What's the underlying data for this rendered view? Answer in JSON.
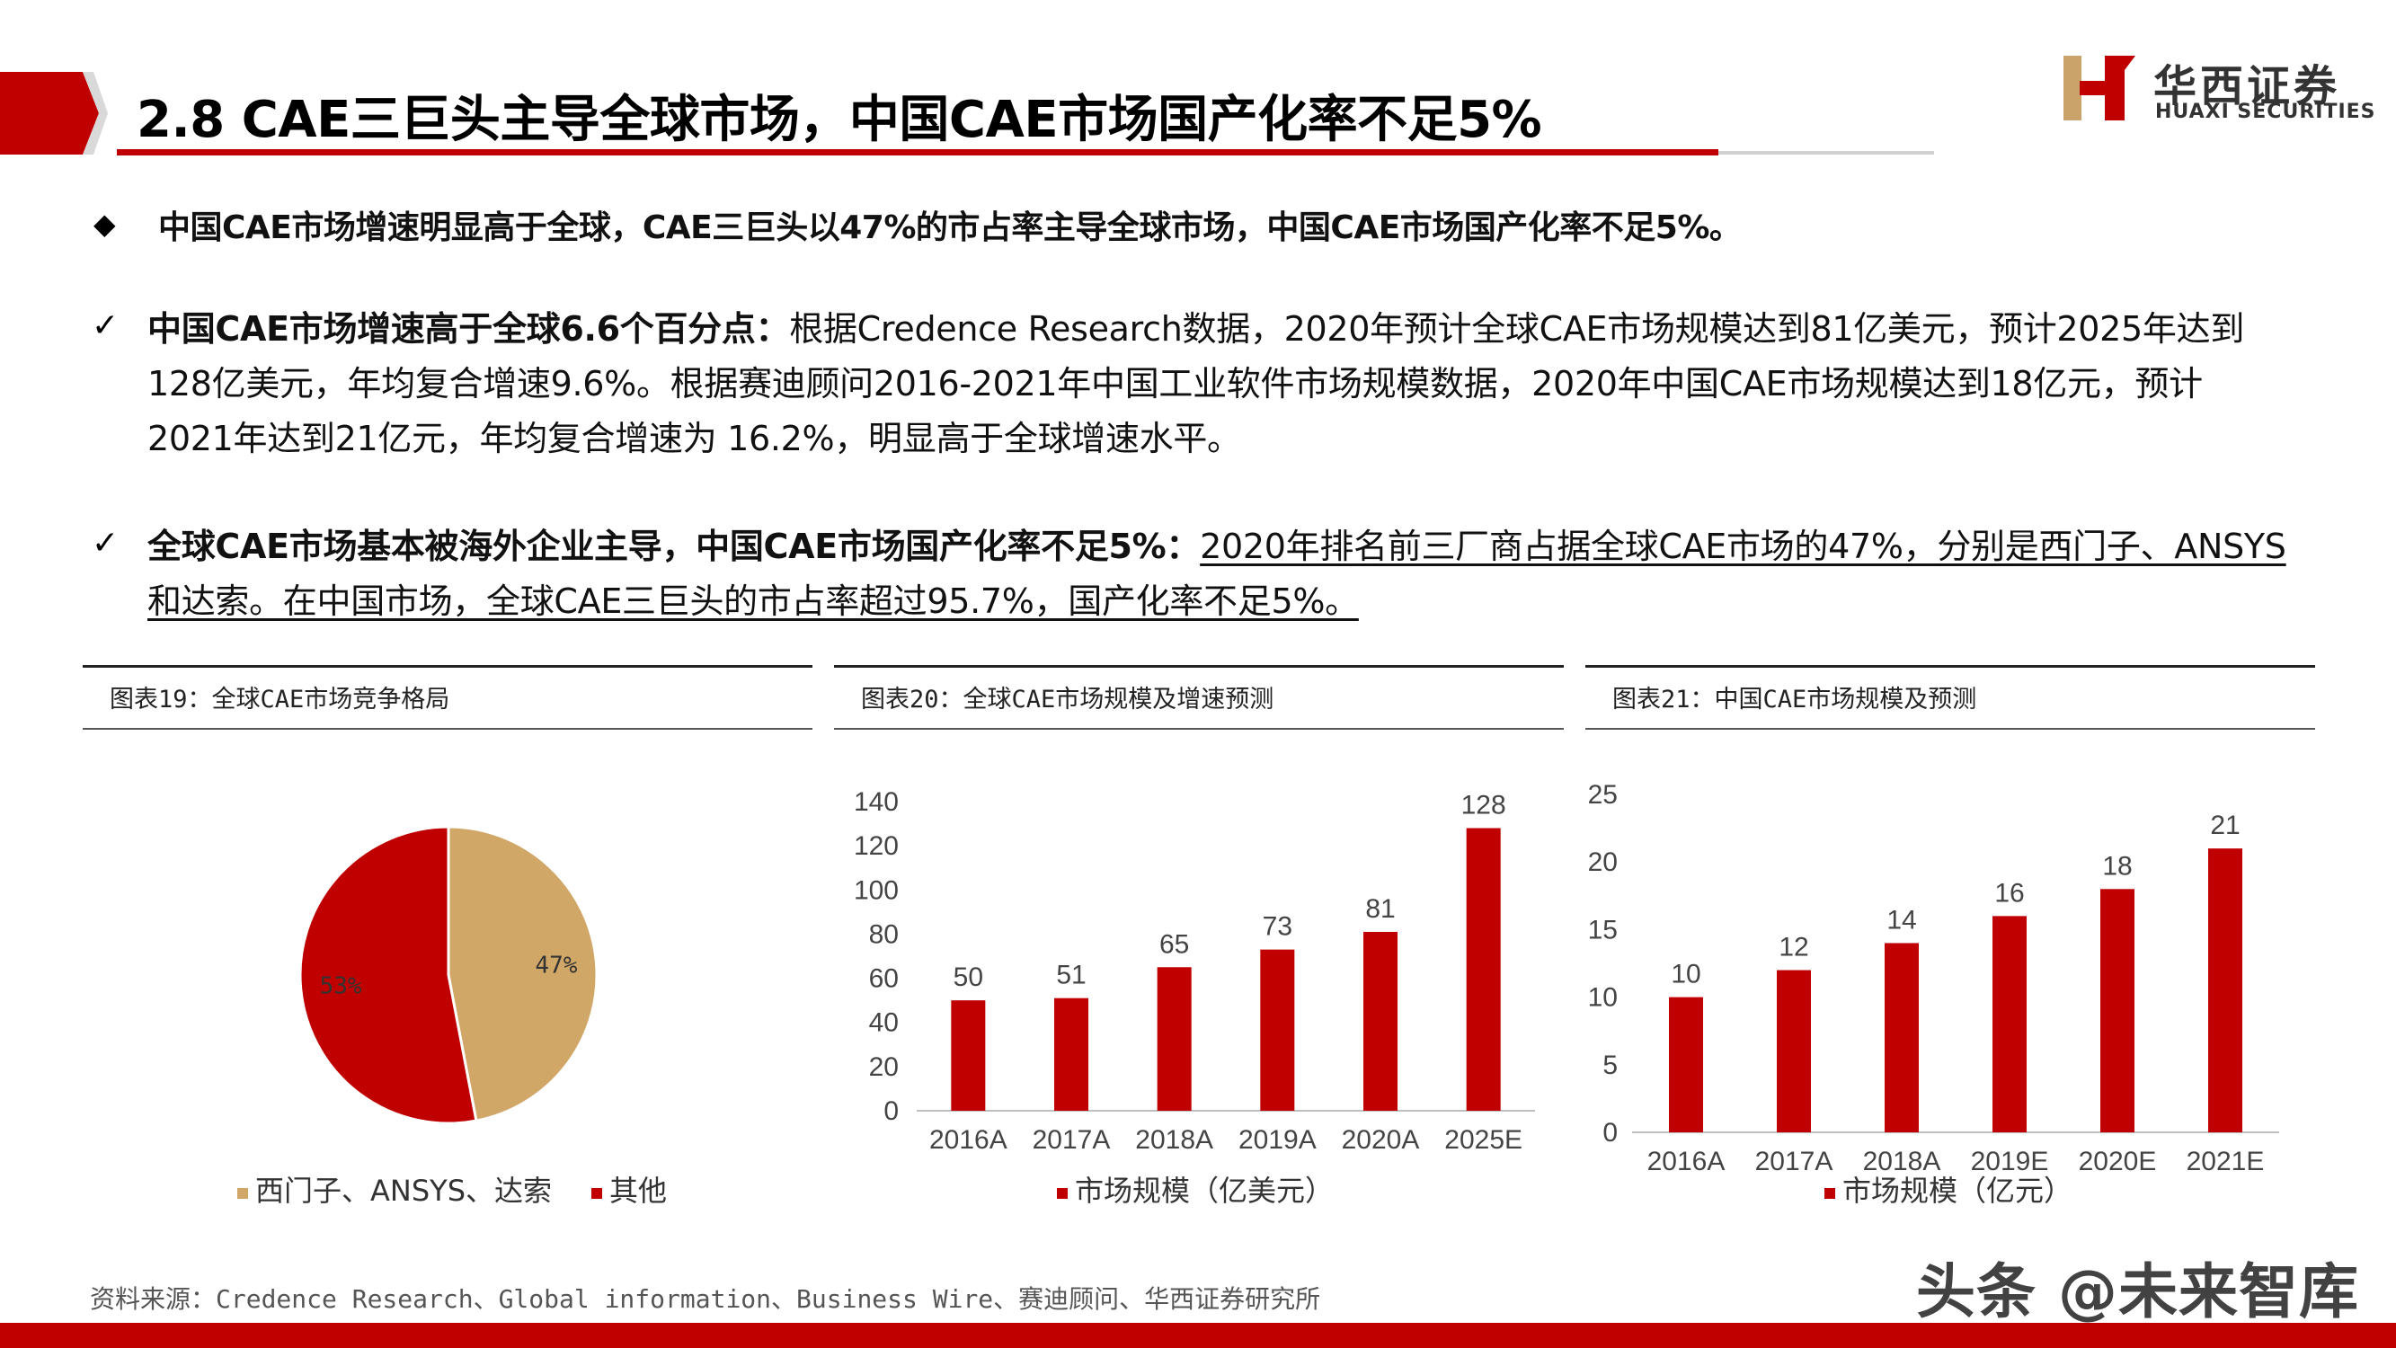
{
  "header": {
    "title": "2.8 CAE三巨头主导全球市场，中国CAE市场国产化率不足5%",
    "logo_cn": "华西证券",
    "logo_en": "HUAXI SECURITIES",
    "brand_color": "#c00000"
  },
  "summary": {
    "icon": "diamond-bullet-icon",
    "text": "中国CAE市场增速明显高于全球，CAE三巨头以47%的市占率主导全球市场，中国CAE市场国产化率不足5%。"
  },
  "points": [
    {
      "icon": "check-icon",
      "heading": "中国CAE市场增速高于全球6.6个百分点：",
      "body": "根据Credence Research数据，2020年预计全球CAE市场规模达到81亿美元，预计2025年达到128亿美元，年均复合增速9.6%。根据赛迪顾问2016-2021年中国工业软件市场规模数据，2020年中国CAE市场规模达到18亿元，预计2021年达到21亿元，年均复合增速为 16.2%，明显高于全球增速水平。"
    },
    {
      "icon": "check-icon",
      "heading": "全球CAE市场基本被海外企业主导，中国CAE市场国产化率不足5%：",
      "body": "2020年排名前三厂商占据全球CAE市场的47%，分别是西门子、ANSYS和达索。在中国市场，全球CAE三巨头的市占率超过95.7%，国产化率不足5%。"
    }
  ],
  "panels": [
    {
      "title": "图表19：全球CAE市场竞争格局"
    },
    {
      "title": "图表20：全球CAE市场规模及增速预测"
    },
    {
      "title": "图表21：中国CAE市场规模及预测"
    }
  ],
  "chart_data": [
    {
      "type": "pie",
      "slices": [
        {
          "name": "西门子、ANSYS、达索",
          "value": 47,
          "label": "47%",
          "color": "#d1a767"
        },
        {
          "name": "其他",
          "value": 53,
          "label": "53%",
          "color": "#c00000"
        }
      ],
      "legend": "bottom"
    },
    {
      "type": "bar",
      "categories": [
        "2016A",
        "2017A",
        "2018A",
        "2019A",
        "2020A",
        "2025E"
      ],
      "series": [
        {
          "name": "市场规模（亿美元）",
          "values": [
            50,
            51,
            65,
            73,
            81,
            128
          ],
          "color": "#c00000"
        }
      ],
      "ylim": [
        0,
        140
      ],
      "yticks": [
        "0",
        "20",
        "40",
        "60",
        "80",
        "100",
        "120",
        "140"
      ],
      "grid": false,
      "legend": "bottom"
    },
    {
      "type": "bar",
      "categories": [
        "2016A",
        "2017A",
        "2018A",
        "2019E",
        "2020E",
        "2021E"
      ],
      "series": [
        {
          "name": "市场规模（亿元）",
          "values": [
            10,
            12,
            14,
            16,
            18,
            21
          ],
          "color": "#c00000"
        }
      ],
      "ylim": [
        0,
        25
      ],
      "yticks": [
        "0",
        "5",
        "10",
        "15",
        "20",
        "25"
      ],
      "grid": false,
      "legend": "bottom"
    }
  ],
  "source": "资料来源：Credence Research、Global information、Business Wire、赛迪顾问、华西证券研究所",
  "watermark": "头条 @未来智库"
}
